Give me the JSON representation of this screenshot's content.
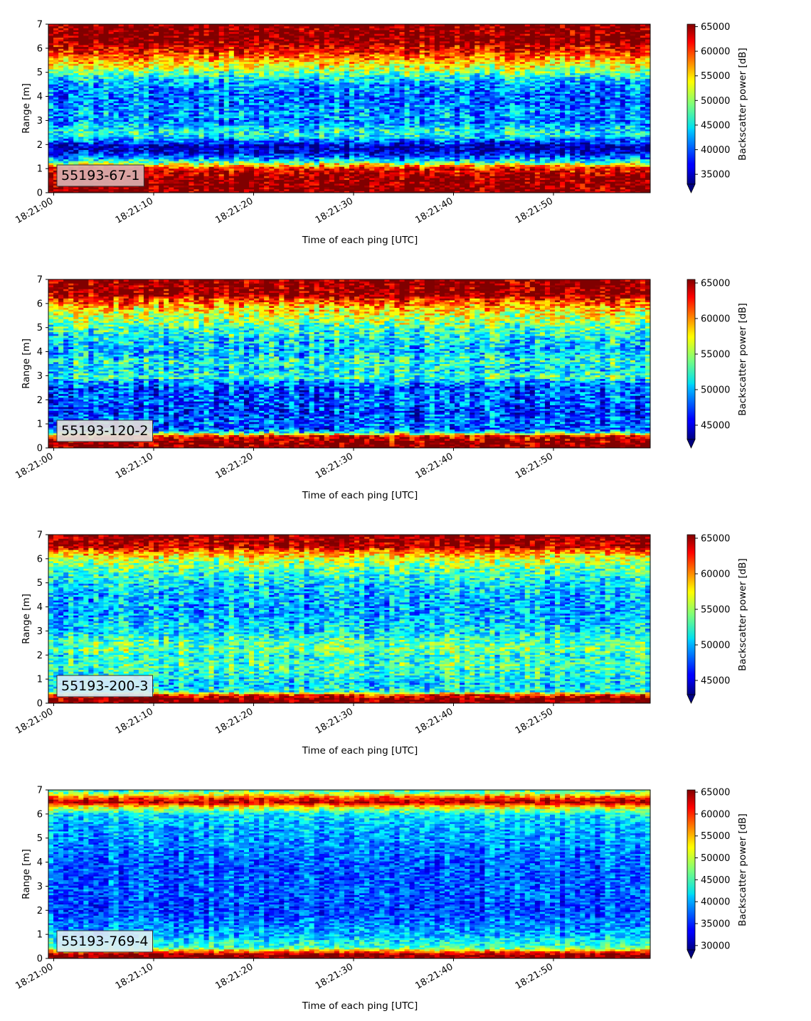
{
  "chart_data": [
    {
      "type": "heatmap",
      "tag": "55193-67-1",
      "tag_bg": "#dcb0b0",
      "xlabel": "Time of each ping [UTC]",
      "ylabel": "Range [m]",
      "ylim": [
        0,
        7
      ],
      "yticks": [
        "0",
        "1",
        "2",
        "3",
        "4",
        "5",
        "6",
        "7"
      ],
      "xticks": [
        "18:21:00",
        "18:21:10",
        "18:21:20",
        "18:21:30",
        "18:21:40",
        "18:21:50"
      ],
      "colorbar": {
        "label": "Backscatter power [dB]",
        "min": 33000,
        "max": 65500,
        "ticks": [
          35000,
          40000,
          45000,
          50000,
          55000,
          60000,
          65000
        ]
      },
      "profile_range_m": [
        0.0,
        0.25,
        0.5,
        0.8,
        1.05,
        1.2,
        1.3,
        1.5,
        1.7,
        1.85,
        2.0,
        2.15,
        2.35,
        2.55,
        2.8,
        3.0,
        3.3,
        3.6,
        3.9,
        4.2,
        4.5,
        4.8,
        5.0,
        5.2,
        5.45,
        5.6,
        5.8,
        6.0,
        6.15,
        6.3,
        7.0
      ],
      "profile_power": [
        65500,
        65500,
        65500,
        64000,
        60000,
        52000,
        46000,
        40000,
        36000,
        34500,
        36000,
        40000,
        45000,
        46000,
        43000,
        41000,
        42000,
        41000,
        40500,
        41000,
        42000,
        45000,
        49000,
        52000,
        55000,
        57000,
        60000,
        62000,
        63500,
        65500,
        65500
      ],
      "noise": 6000
    },
    {
      "type": "heatmap",
      "tag": "55193-120-2",
      "tag_bg": "#e4e0dc",
      "xlabel": "Time of each ping [UTC]",
      "ylabel": "Range [m]",
      "ylim": [
        0,
        7
      ],
      "yticks": [
        "0",
        "1",
        "2",
        "3",
        "4",
        "5",
        "6",
        "7"
      ],
      "xticks": [
        "18:21:00",
        "18:21:10",
        "18:21:20",
        "18:21:30",
        "18:21:40",
        "18:21:50"
      ],
      "colorbar": {
        "label": "Backscatter power [dB]",
        "min": 43000,
        "max": 65500,
        "ticks": [
          45000,
          50000,
          55000,
          60000,
          65000
        ]
      },
      "profile_range_m": [
        0.0,
        0.2,
        0.5,
        0.65,
        0.8,
        1.0,
        1.5,
        2.0,
        2.5,
        2.8,
        2.95,
        3.2,
        3.6,
        4.0,
        4.5,
        5.0,
        5.5,
        5.8,
        6.0,
        6.2,
        6.4,
        7.0
      ],
      "profile_power": [
        65500,
        65500,
        63000,
        52000,
        47000,
        48000,
        47000,
        48000,
        47500,
        50000,
        53000,
        51000,
        52000,
        50000,
        51000,
        53000,
        56000,
        58000,
        60000,
        62000,
        65500,
        65500
      ],
      "noise": 4500
    },
    {
      "type": "heatmap",
      "tag": "55193-200-3",
      "tag_bg": "#d8ecf6",
      "xlabel": "Time of each ping [UTC]",
      "ylabel": "Range [m]",
      "ylim": [
        0,
        7
      ],
      "yticks": [
        "0",
        "1",
        "2",
        "3",
        "4",
        "5",
        "6",
        "7"
      ],
      "xticks": [
        "18:21:00",
        "18:21:10",
        "18:21:20",
        "18:21:30",
        "18:21:40",
        "18:21:50"
      ],
      "colorbar": {
        "label": "Backscatter power [dB]",
        "min": 43000,
        "max": 65500,
        "ticks": [
          45000,
          50000,
          55000,
          60000,
          65000
        ]
      },
      "profile_range_m": [
        0.0,
        0.2,
        0.35,
        0.5,
        0.8,
        1.2,
        1.6,
        2.0,
        2.2,
        2.6,
        3.0,
        3.5,
        4.0,
        4.5,
        5.0,
        5.5,
        6.0,
        6.3,
        6.5,
        7.0
      ],
      "profile_power": [
        65500,
        65500,
        62000,
        52000,
        50500,
        52000,
        53000,
        52000,
        54000,
        53000,
        51000,
        50000,
        49500,
        50000,
        51000,
        53000,
        56000,
        60000,
        64000,
        65500
      ],
      "noise": 4000
    },
    {
      "type": "heatmap",
      "tag": "55193-769-4",
      "tag_bg": "#dcecf4",
      "xlabel": "Time of each ping [UTC]",
      "ylabel": "Range [m]",
      "ylim": [
        0,
        7
      ],
      "yticks": [
        "0",
        "1",
        "2",
        "3",
        "4",
        "5",
        "6",
        "7"
      ],
      "xticks": [
        "18:21:00",
        "18:21:10",
        "18:21:20",
        "18:21:30",
        "18:21:40",
        "18:21:50"
      ],
      "colorbar": {
        "label": "Backscatter power [dB]",
        "min": 29000,
        "max": 65500,
        "ticks": [
          30000,
          35000,
          40000,
          45000,
          50000,
          55000,
          60000,
          65000
        ]
      },
      "profile_range_m": [
        0.0,
        0.15,
        0.3,
        0.45,
        0.7,
        1.0,
        1.5,
        2.0,
        2.5,
        3.0,
        3.5,
        4.0,
        4.5,
        5.0,
        5.5,
        6.0,
        6.3,
        6.5,
        6.7,
        6.9,
        7.0
      ],
      "profile_power": [
        65500,
        65500,
        57000,
        45000,
        43000,
        40000,
        38000,
        36000,
        36500,
        37000,
        36500,
        37000,
        38000,
        39000,
        40000,
        42000,
        52000,
        64000,
        58000,
        47000,
        45000
      ],
      "noise": 5000
    }
  ]
}
